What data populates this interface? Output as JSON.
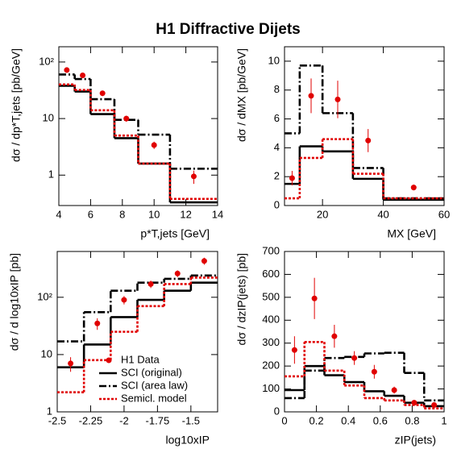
{
  "title": "H1 Diffractive Dijets",
  "chart_data": [
    {
      "type": "histogram",
      "xlabel": "p*T,jets  [GeV]",
      "ylabel": "dσ / dp*T,jets  [pb/GeV]",
      "xlim": [
        4,
        14
      ],
      "xticks": [
        4,
        6,
        8,
        10,
        12,
        14
      ],
      "ylim": [
        0.29,
        186
      ],
      "log_y": true,
      "yticks": [
        1,
        10,
        {
          "value": 100,
          "label": "10²"
        }
      ],
      "bins": [
        4,
        5,
        6,
        7.5,
        9,
        11,
        14
      ],
      "series": [
        {
          "color": "#000000",
          "dash": "solid",
          "values": [
            38,
            30,
            12,
            4.5,
            1.6,
            0.33
          ]
        },
        {
          "color": "#000000",
          "dash": "dashdot",
          "values": [
            60,
            50,
            22,
            9.5,
            5.2,
            1.3
          ]
        },
        {
          "color": "#e00000",
          "dash": "dotted",
          "values": [
            40,
            32,
            14,
            5,
            1.6,
            0.38
          ]
        }
      ],
      "points": {
        "color": "#e00000",
        "x": [
          4.5,
          5.5,
          6.75,
          8.25,
          10,
          12.5
        ],
        "values": [
          72,
          58,
          28,
          10,
          3.4,
          0.95
        ],
        "errors": [
          6,
          5,
          3,
          1.2,
          0.5,
          0.25
        ]
      }
    },
    {
      "type": "histogram",
      "xlabel": "MX [GeV]",
      "ylabel": "dσ / dMX  [pb/GeV]",
      "xlim": [
        7.5,
        60
      ],
      "xticks": [
        20,
        40,
        60
      ],
      "ylim": [
        0,
        11
      ],
      "yticks": [
        0,
        2,
        4,
        6,
        8,
        10
      ],
      "bins": [
        7.5,
        12.5,
        20,
        30,
        40,
        60
      ],
      "series": [
        {
          "color": "#000000",
          "dash": "solid",
          "values": [
            1.5,
            4.1,
            3.75,
            1.85,
            0.4
          ]
        },
        {
          "color": "#000000",
          "dash": "dashdot",
          "values": [
            5,
            9.7,
            6.4,
            2.6,
            0.5
          ]
        },
        {
          "color": "#e00000",
          "dash": "dotted",
          "values": [
            0.5,
            3.3,
            4.6,
            2.2,
            0.5
          ]
        }
      ],
      "points": {
        "color": "#e00000",
        "x": [
          10,
          16.25,
          25,
          35,
          50
        ],
        "values": [
          1.9,
          7.6,
          7.35,
          4.5,
          1.25
        ],
        "errors": [
          0.5,
          1.2,
          1.3,
          0.8,
          0.2
        ]
      }
    },
    {
      "type": "histogram",
      "xlabel": "log10xIP",
      "ylabel": "dσ / d log10xIP [pb]",
      "xlim": [
        -2.5,
        -1.3
      ],
      "xticks": [
        -2.5,
        -2.25,
        -2,
        -1.75,
        -1.5
      ],
      "ylim": [
        1,
        630
      ],
      "log_y": true,
      "yticks": [
        1,
        10,
        {
          "value": 100,
          "label": "10²"
        }
      ],
      "bins": [
        -2.5,
        -2.3,
        -2.1,
        -1.9,
        -1.7,
        -1.5,
        -1.3
      ],
      "series": [
        {
          "name": "SCI (original)",
          "color": "#000000",
          "dash": "solid",
          "values": [
            6,
            15,
            45,
            90,
            130,
            180
          ]
        },
        {
          "name": "SCI (area law)",
          "color": "#000000",
          "dash": "dashdot",
          "values": [
            17,
            55,
            130,
            180,
            210,
            240
          ]
        },
        {
          "name": "Semicl. model",
          "color": "#e00000",
          "dash": "dotted",
          "values": [
            2.2,
            8,
            25,
            70,
            170,
            220
          ]
        }
      ],
      "points": {
        "name": "H1 Data",
        "color": "#e00000",
        "x": [
          -2.4,
          -2.2,
          -2,
          -1.8,
          -1.6,
          -1.4
        ],
        "values": [
          7,
          35,
          90,
          170,
          260,
          430
        ],
        "errors": [
          2,
          8,
          15,
          25,
          35,
          60
        ]
      },
      "legend": "lower right"
    },
    {
      "type": "histogram",
      "xlabel": "zIP(jets)",
      "ylabel": "dσ / dzIP(jets)  [pb]",
      "xlim": [
        0,
        1
      ],
      "xticks": [
        0,
        0.2,
        0.4,
        0.6,
        0.8,
        1
      ],
      "ylim": [
        0,
        700
      ],
      "yticks": [
        0,
        100,
        200,
        300,
        400,
        500,
        600,
        700
      ],
      "bins": [
        0,
        0.125,
        0.25,
        0.375,
        0.5,
        0.625,
        0.75,
        0.875,
        1
      ],
      "series": [
        {
          "color": "#000000",
          "dash": "solid",
          "values": [
            95,
            200,
            160,
            130,
            90,
            70,
            40,
            25
          ]
        },
        {
          "color": "#000000",
          "dash": "dashdot",
          "values": [
            60,
            180,
            235,
            240,
            255,
            258,
            170,
            50
          ]
        },
        {
          "color": "#e00000",
          "dash": "dotted",
          "values": [
            155,
            305,
            180,
            115,
            60,
            50,
            30,
            15
          ]
        }
      ],
      "points": {
        "color": "#e00000",
        "x": [
          0.0625,
          0.1875,
          0.3125,
          0.4375,
          0.5625,
          0.6875,
          0.8125,
          0.9375
        ],
        "values": [
          270,
          495,
          330,
          235,
          175,
          95,
          40,
          30
        ],
        "errors": [
          60,
          90,
          50,
          30,
          30,
          15,
          10,
          8
        ]
      }
    }
  ]
}
